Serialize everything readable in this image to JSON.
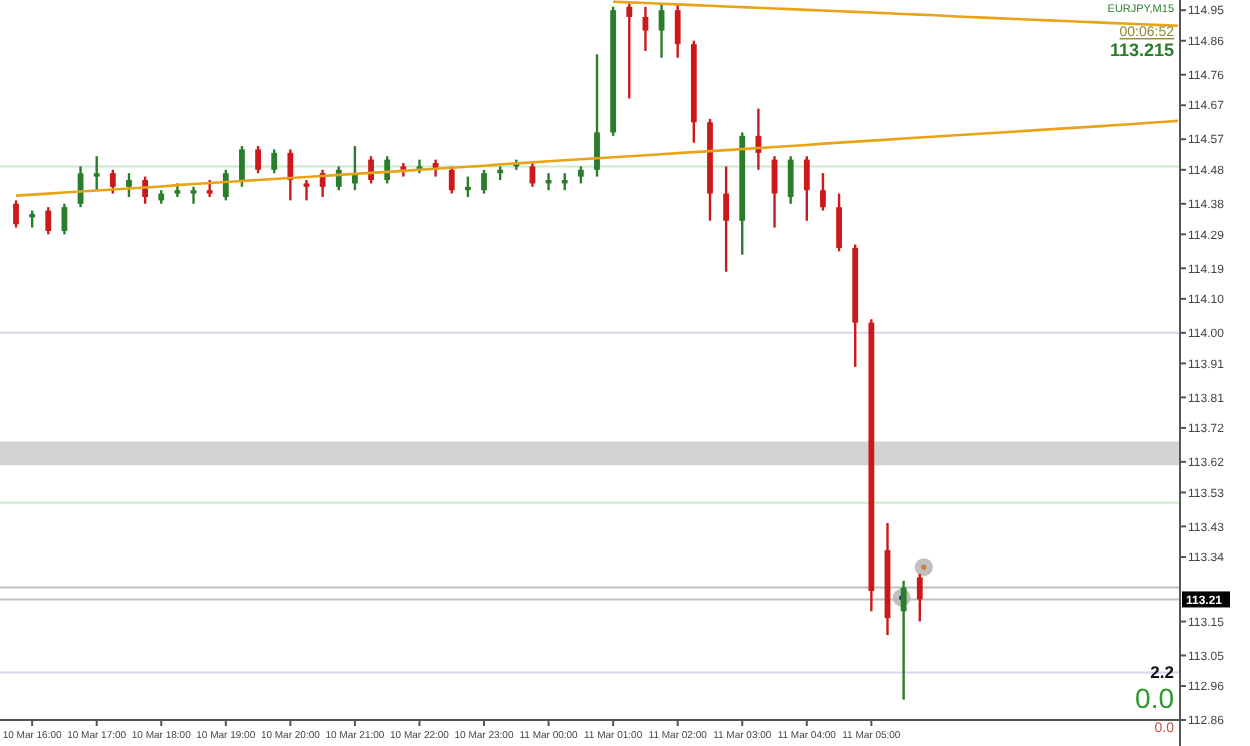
{
  "chart_data": {
    "type": "candlestick",
    "categories": [
      null,
      "10 Mar 16:00",
      null,
      null,
      null,
      "10 Mar 17:00",
      null,
      null,
      null,
      "10 Mar 18:00",
      null,
      null,
      null,
      "10 Mar 19:00",
      null,
      null,
      null,
      "10 Mar 20:00",
      null,
      null,
      null,
      "10 Mar 21:00",
      null,
      null,
      null,
      "10 Mar 22:00",
      null,
      null,
      null,
      "10 Mar 23:00",
      null,
      null,
      null,
      "11 Mar 00:00",
      null,
      null,
      null,
      "11 Mar 01:00",
      null,
      null,
      null,
      "11 Mar 02:00",
      null,
      null,
      null,
      "11 Mar 03:00",
      null,
      null,
      null,
      "11 Mar 04:00",
      null,
      null,
      null,
      "11 Mar 05:00",
      null,
      null,
      null,
      null,
      null,
      null,
      null,
      null,
      null,
      null,
      null,
      null,
      null,
      null,
      null,
      null,
      null,
      null,
      null
    ],
    "series": [
      {
        "type": "candlestick",
        "ohlc": [
          [
            114.38,
            114.39,
            114.31,
            114.32
          ],
          [
            114.34,
            114.36,
            114.31,
            114.35
          ],
          [
            114.36,
            114.37,
            114.29,
            114.3
          ],
          [
            114.3,
            114.38,
            114.29,
            114.37
          ],
          [
            114.38,
            114.49,
            114.37,
            114.47
          ],
          [
            114.46,
            114.52,
            114.42,
            114.47
          ],
          [
            114.47,
            114.48,
            114.41,
            114.43
          ],
          [
            114.43,
            114.47,
            114.4,
            114.45
          ],
          [
            114.45,
            114.46,
            114.38,
            114.4
          ],
          [
            114.39,
            114.42,
            114.38,
            114.41
          ],
          [
            114.41,
            114.44,
            114.4,
            114.42
          ],
          [
            114.41,
            114.43,
            114.38,
            114.42
          ],
          [
            114.42,
            114.45,
            114.4,
            114.41
          ],
          [
            114.4,
            114.48,
            114.39,
            114.47
          ],
          [
            114.45,
            114.55,
            114.43,
            114.54
          ],
          [
            114.54,
            114.55,
            114.47,
            114.48
          ],
          [
            114.48,
            114.54,
            114.47,
            114.53
          ],
          [
            114.53,
            114.54,
            114.39,
            114.45
          ],
          [
            114.44,
            114.45,
            114.39,
            114.43
          ],
          [
            114.47,
            114.48,
            114.4,
            114.43
          ],
          [
            114.43,
            114.49,
            114.42,
            114.48
          ],
          [
            114.44,
            114.55,
            114.42,
            114.47
          ],
          [
            114.51,
            114.52,
            114.44,
            114.45
          ],
          [
            114.45,
            114.52,
            114.44,
            114.51
          ],
          [
            114.49,
            114.5,
            114.46,
            114.48
          ],
          [
            114.48,
            114.51,
            114.47,
            114.49
          ],
          [
            114.5,
            114.51,
            114.46,
            114.48
          ],
          [
            114.48,
            114.49,
            114.41,
            114.42
          ],
          [
            114.42,
            114.46,
            114.4,
            114.43
          ],
          [
            114.42,
            114.48,
            114.41,
            114.47
          ],
          [
            114.47,
            114.49,
            114.45,
            114.48
          ],
          [
            114.49,
            114.51,
            114.48,
            114.5
          ],
          [
            114.49,
            114.5,
            114.43,
            114.44
          ],
          [
            114.44,
            114.47,
            114.42,
            114.45
          ],
          [
            114.44,
            114.47,
            114.42,
            114.45
          ],
          [
            114.46,
            114.49,
            114.44,
            114.48
          ],
          [
            114.48,
            114.82,
            114.46,
            114.59
          ],
          [
            114.59,
            114.96,
            114.58,
            114.95
          ],
          [
            114.96,
            114.97,
            114.69,
            114.93
          ],
          [
            114.93,
            114.96,
            114.83,
            114.89
          ],
          [
            114.89,
            114.97,
            114.81,
            114.95
          ],
          [
            114.95,
            114.97,
            114.81,
            114.85
          ],
          [
            114.85,
            114.86,
            114.56,
            114.62
          ],
          [
            114.62,
            114.63,
            114.33,
            114.41
          ],
          [
            114.41,
            114.49,
            114.18,
            114.33
          ],
          [
            114.33,
            114.59,
            114.23,
            114.58
          ],
          [
            114.58,
            114.66,
            114.48,
            114.53
          ],
          [
            114.51,
            114.52,
            114.31,
            114.41
          ],
          [
            114.4,
            114.52,
            114.38,
            114.51
          ],
          [
            114.51,
            114.52,
            114.33,
            114.42
          ],
          [
            114.42,
            114.47,
            114.36,
            114.37
          ],
          [
            114.37,
            114.41,
            114.24,
            114.25
          ],
          [
            114.25,
            114.26,
            113.9,
            114.03
          ],
          [
            114.03,
            114.04,
            113.18,
            113.24
          ],
          [
            113.36,
            113.44,
            113.11,
            113.16
          ],
          [
            113.18,
            113.27,
            112.92,
            113.25
          ],
          [
            113.28,
            113.29,
            113.15,
            113.215
          ],
          null,
          null,
          null,
          null,
          null,
          null,
          null,
          null,
          null,
          null,
          null,
          null,
          null,
          null,
          null,
          null
        ],
        "colors": [
          "#cc1a1a",
          "#2a7d2a",
          "#cc1a1a",
          "#2a7d2a",
          "#2a7d2a",
          "#2a7d2a",
          "#cc1a1a",
          "#2a7d2a",
          "#cc1a1a",
          "#2a7d2a",
          "#2a7d2a",
          "#2a7d2a",
          "#cc1a1a",
          "#2a7d2a",
          "#2a7d2a",
          "#cc1a1a",
          "#2a7d2a",
          "#cc1a1a",
          "#cc1a1a",
          "#cc1a1a",
          "#2a7d2a",
          "#2a7d2a",
          "#cc1a1a",
          "#2a7d2a",
          "#cc1a1a",
          "#2a7d2a",
          "#cc1a1a",
          "#cc1a1a",
          "#2a7d2a",
          "#2a7d2a",
          "#2a7d2a",
          "#2a7d2a",
          "#cc1a1a",
          "#2a7d2a",
          "#2a7d2a",
          "#2a7d2a",
          "#2a7d2a",
          "#2a7d2a",
          "#cc1a1a",
          "#cc1a1a",
          "#2a7d2a",
          "#cc1a1a",
          "#cc1a1a",
          "#cc1a1a",
          "#cc1a1a",
          "#2a7d2a",
          "#cc1a1a",
          "#cc1a1a",
          "#2a7d2a",
          "#cc1a1a",
          "#cc1a1a",
          "#cc1a1a",
          "#cc1a1a",
          "#cc1a1a",
          "#cc1a1a",
          "#2a7d2a",
          "#cc1a1a",
          null,
          null,
          null,
          null,
          null,
          null,
          null,
          null,
          null,
          null,
          null,
          null,
          null,
          null,
          null,
          null
        ]
      },
      {
        "type": "line",
        "color": "#e8a317",
        "values": [
          114.404,
          114.407,
          114.41,
          114.413,
          114.416,
          114.419,
          114.422,
          114.425,
          114.428,
          114.431,
          114.435,
          114.438,
          114.441,
          114.444,
          114.447,
          114.45,
          114.453,
          114.456,
          114.459,
          114.462,
          114.465,
          114.468,
          114.471,
          114.474,
          114.477,
          114.48,
          114.483,
          114.486,
          114.489,
          114.492,
          114.496,
          114.499,
          114.502,
          114.505,
          114.508,
          114.511,
          114.514,
          114.517,
          114.52,
          114.523,
          114.526,
          114.529,
          114.532,
          114.535,
          114.538,
          114.541,
          114.544,
          114.547,
          114.55,
          114.553,
          114.557,
          114.56,
          114.563,
          114.566,
          114.569,
          114.572,
          114.575,
          114.578,
          114.581,
          114.584,
          114.587,
          114.59,
          114.593,
          114.596,
          114.599,
          114.602,
          114.605,
          114.608,
          114.611,
          114.614,
          114.618,
          114.621,
          114.624
        ]
      },
      {
        "type": "line",
        "color": "#e8a317",
        "values": [
          null,
          null,
          null,
          null,
          null,
          null,
          null,
          null,
          null,
          null,
          null,
          null,
          null,
          null,
          null,
          null,
          null,
          null,
          null,
          null,
          null,
          null,
          null,
          null,
          null,
          null,
          null,
          null,
          null,
          null,
          null,
          null,
          null,
          null,
          null,
          null,
          null,
          114.975,
          114.973,
          114.971,
          114.969,
          114.967,
          114.965,
          114.963,
          114.961,
          114.959,
          114.957,
          114.955,
          114.953,
          114.951,
          114.949,
          114.947,
          114.945,
          114.943,
          114.941,
          114.939,
          114.937,
          114.935,
          114.932,
          114.93,
          114.928,
          114.926,
          114.924,
          114.922,
          114.92,
          114.918,
          114.916,
          114.914,
          114.912,
          114.91,
          114.908,
          114.906,
          114.904
        ]
      }
    ],
    "ylim": [
      112.86,
      114.98
    ],
    "yticks": [
      114.95,
      114.86,
      114.76,
      114.67,
      114.57,
      114.48,
      114.38,
      114.29,
      114.19,
      {
        "value": 114.1,
        "label": "114.10"
      },
      {
        "value": 114.0,
        "label": "114.00"
      },
      113.91,
      113.81,
      113.72,
      113.62,
      113.53,
      113.43,
      113.34,
      113.15,
      113.05,
      112.96,
      112.86
    ],
    "ref_lines": [
      {
        "axis": "y",
        "value": 114.49,
        "color": "#c8ecc8"
      },
      {
        "axis": "y",
        "value": 114.0,
        "color": "#d6d6ee"
      },
      {
        "axis": "y",
        "value": 113.5,
        "color": "#c8ecc8"
      },
      {
        "axis": "y",
        "value": 113.25,
        "color": "#c0c0c0"
      },
      {
        "axis": "y",
        "value": 113.215,
        "label": "113.21",
        "color": "#c0c0c0"
      },
      {
        "axis": "y",
        "value": 113.0,
        "color": "#d6d6ee"
      }
    ],
    "bands": [
      {
        "axis": "y",
        "from": 113.61,
        "to": 113.68,
        "color": "#d3d3d3"
      }
    ],
    "annotations": [
      "EURJPY,M15",
      "00:06:52",
      "113.215",
      "2.2",
      "0.0",
      "0.0"
    ],
    "grid": false
  }
}
